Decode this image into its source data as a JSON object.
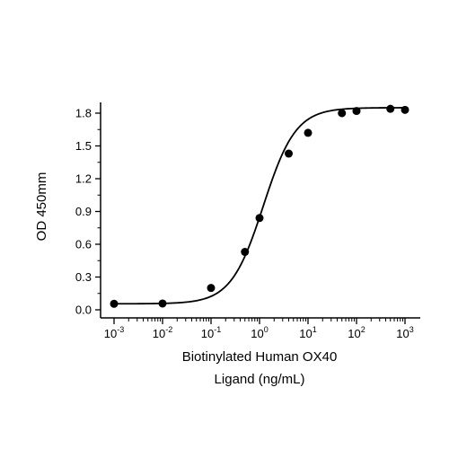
{
  "chart_data": {
    "type": "scatter",
    "xscale": "log",
    "xlim": [
      0.001,
      1000
    ],
    "ylim": [
      0,
      1.8
    ],
    "y_ticks": [
      0.0,
      0.3,
      0.6,
      0.9,
      1.2,
      1.5,
      1.8
    ],
    "y_tick_labels": [
      "0.0",
      "0.3",
      "0.6",
      "0.9",
      "1.2",
      "1.5",
      "1.8"
    ],
    "x_ticks": [
      0.001,
      0.01,
      0.1,
      1,
      10,
      100,
      1000
    ],
    "x_tick_labels": [
      {
        "base": "10",
        "exp": "-3"
      },
      {
        "base": "10",
        "exp": "-2"
      },
      {
        "base": "10",
        "exp": "-1"
      },
      {
        "base": "10",
        "exp": "0"
      },
      {
        "base": "10",
        "exp": "1"
      },
      {
        "base": "10",
        "exp": "2"
      },
      {
        "base": "10",
        "exp": "3"
      }
    ],
    "xlabel_lines": [
      "Biotinylated Human OX40",
      "Ligand (ng/mL)"
    ],
    "ylabel": "OD 450mm",
    "grid": false,
    "legend": "none",
    "series": [
      {
        "x": [
          0.001,
          0.01,
          0.1,
          0.5,
          1,
          4,
          10,
          50,
          100,
          500,
          1000
        ],
        "y": [
          0.055,
          0.058,
          0.2,
          0.53,
          0.84,
          1.43,
          1.62,
          1.8,
          1.82,
          1.84,
          1.83
        ],
        "marker": "circle",
        "fit": "4PL",
        "fit_params": {
          "bottom": 0.055,
          "top": 1.85,
          "ec50": 1.2,
          "hill": 1.3
        }
      }
    ],
    "colors": {
      "marker": "#000000",
      "line": "#000000",
      "axis": "#000000"
    }
  }
}
